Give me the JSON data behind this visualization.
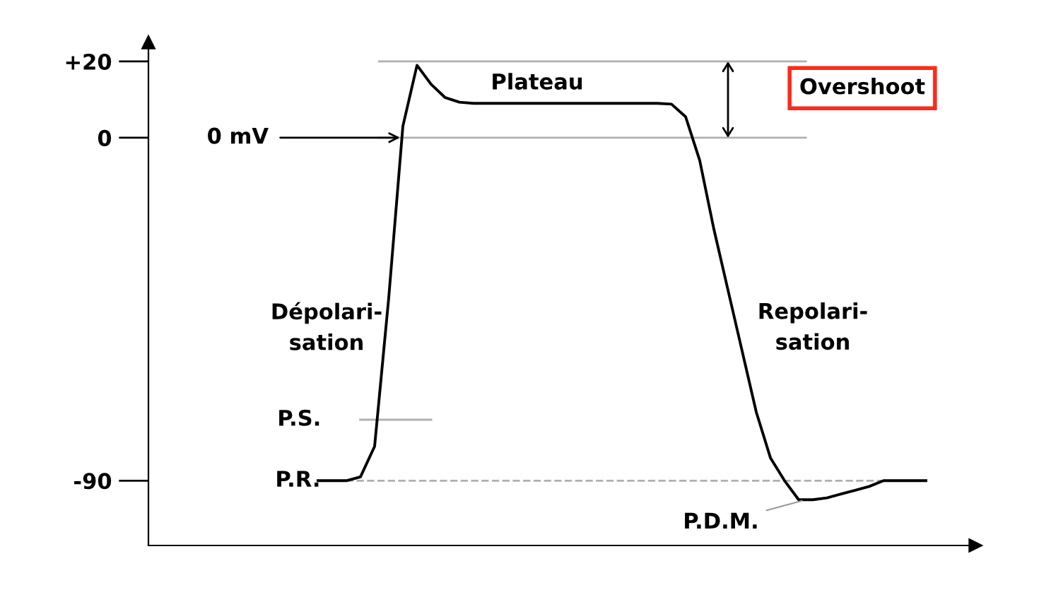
{
  "chart_data": {
    "type": "line",
    "categories": [
      null,
      null,
      null,
      null,
      null,
      null,
      null,
      null,
      null,
      null,
      null,
      null,
      null,
      null,
      null,
      null,
      null,
      null,
      null,
      null,
      null,
      null,
      null,
      null,
      null,
      null,
      null,
      null,
      null,
      null,
      null,
      null,
      null,
      null,
      null,
      null,
      null,
      null,
      null,
      null,
      null,
      null,
      null,
      null
    ],
    "series": [
      {
        "color": "#000000",
        "values": [
          -90,
          -90,
          -90,
          -89,
          -81,
          -42,
          3,
          19,
          14,
          10.5,
          9.3,
          9,
          9,
          9,
          9,
          9,
          9,
          9,
          9,
          9,
          9,
          9,
          9,
          9,
          9,
          8.8,
          5.5,
          -6,
          -24,
          -40,
          -56,
          -72,
          -84,
          -90,
          -95,
          -95,
          -94.5,
          -93.5,
          -92.5,
          -91.5,
          -90,
          -90,
          -90,
          -90
        ]
      }
    ],
    "ylim": [
      -107,
      25
    ],
    "yticks": [
      {
        "value": 20,
        "label": "+20"
      },
      0,
      {
        "value": -90,
        "label": "-90"
      }
    ],
    "tick_labels": "y",
    "grid": false,
    "legend": false,
    "marker": "none",
    "line_style": "solid",
    "ref_lines": [
      {
        "axis": "y",
        "value": 20,
        "color": "#b0b0b0"
      },
      {
        "axis": "y",
        "value": 0,
        "color": "#b0b0b0"
      },
      {
        "axis": "y",
        "value": -74,
        "label": "P.S.",
        "color": "#b0b0b0"
      },
      {
        "axis": "y",
        "value": -90,
        "label": "P.R.",
        "color": "#b0b0b0",
        "line_style": "dashed"
      }
    ],
    "annotations": [
      "0 mV",
      "Plateau",
      "Dépolari-\nsation",
      "Repolari-\nsation",
      "Overshoot",
      "P.D.M."
    ]
  }
}
